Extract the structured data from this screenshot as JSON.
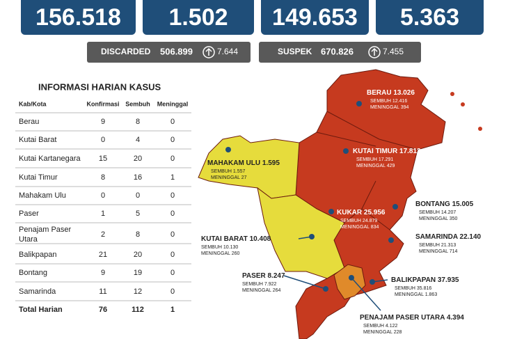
{
  "stats": [
    "156.518",
    "1.502",
    "149.653",
    "5.363"
  ],
  "discarded": {
    "label": "DISCARDED",
    "value": "506.899",
    "change": "7.644"
  },
  "suspek": {
    "label": "SUSPEK",
    "value": "670.826",
    "change": "7.455"
  },
  "table": {
    "title": "INFORMASI HARIAN KASUS",
    "headers": [
      "Kab/Kota",
      "Konfirmasi",
      "Sembuh",
      "Meninggal"
    ],
    "rows": [
      [
        "Berau",
        "9",
        "8",
        "0"
      ],
      [
        "Kutai Barat",
        "0",
        "4",
        "0"
      ],
      [
        "Kutai Kartanegara",
        "15",
        "20",
        "0"
      ],
      [
        "Kutai Timur",
        "8",
        "16",
        "1"
      ],
      [
        "Mahakam Ulu",
        "0",
        "0",
        "0"
      ],
      [
        "Paser",
        "1",
        "5",
        "0"
      ],
      [
        "Penajam Paser Utara",
        "2",
        "8",
        "0"
      ],
      [
        "Balikpapan",
        "21",
        "20",
        "0"
      ],
      [
        "Bontang",
        "9",
        "19",
        "0"
      ],
      [
        "Samarinda",
        "11",
        "12",
        "0"
      ]
    ],
    "total": [
      "Total Harian",
      "76",
      "112",
      "1"
    ]
  },
  "regions": [
    {
      "name": "BERAU",
      "value": "13.026",
      "sembuh": "SEMBUH 12.416",
      "meninggal": "MENINGGAL 394"
    },
    {
      "name": "KUTAI TIMUR",
      "value": "17.812",
      "sembuh": "SEMBUH 17.291",
      "meninggal": "MENINGGAL 429"
    },
    {
      "name": "MAHAKAM ULU",
      "value": "1.595",
      "sembuh": "SEMBUH 1.557",
      "meninggal": "MENINGGAL 27"
    },
    {
      "name": "KUKAR",
      "value": "25.956",
      "sembuh": "SEMBUH 24.879",
      "meninggal": "MENINGGAL 834"
    },
    {
      "name": "BONTANG",
      "value": "15.005",
      "sembuh": "SEMBUH 14.207",
      "meninggal": "MENINGGAL 350"
    },
    {
      "name": "SAMARINDA",
      "value": "22.140",
      "sembuh": "SEMBUH 21.313",
      "meninggal": "MENINGGAL 714"
    },
    {
      "name": "KUTAI BARAT",
      "value": "10.408",
      "sembuh": "SEMBUH 10.130",
      "meninggal": "MENINGGAL 260"
    },
    {
      "name": "PASER",
      "value": "8.247",
      "sembuh": "SEMBUH 7.922",
      "meninggal": "MENINGGAL 264"
    },
    {
      "name": "BALIKPAPAN",
      "value": "37.935",
      "sembuh": "SEMBUH 35.816",
      "meninggal": "MENINGGAL 1.863"
    },
    {
      "name": "PENAJAM PASER UTARA",
      "value": "4.394",
      "sembuh": "SEMBUH 4.122",
      "meninggal": "MENINGGAL 228"
    }
  ]
}
